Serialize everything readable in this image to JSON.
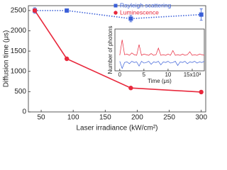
{
  "chart_data": [
    {
      "type": "line",
      "x_label": "Laser irradiance  (kW/cm²)",
      "y_label": "Diffusion time (μs)",
      "x": [
        40,
        90,
        190,
        300
      ],
      "series": [
        {
          "name": "Rayleigh scattering",
          "color": "#3a5fd8",
          "marker": "square",
          "dash": "dotted",
          "values": [
            2500,
            2500,
            2300,
            2400
          ],
          "errors": [
            70,
            0,
            80,
            140
          ]
        },
        {
          "name": "Luminescence",
          "color": "#e8283c",
          "marker": "circle",
          "dash": "solid",
          "values": [
            2500,
            1310,
            590,
            490
          ]
        }
      ],
      "xlim": [
        30,
        307
      ],
      "ylim": [
        0,
        2620
      ],
      "xticks": [
        50,
        100,
        150,
        200,
        250,
        300
      ],
      "yticks": [
        0,
        500,
        1000,
        1500,
        2000,
        2500
      ],
      "legend": "top-right"
    },
    {
      "type": "line",
      "x_label": "Time (μs)",
      "y_label": "Number of photons",
      "x": [
        0,
        0.5,
        1,
        1.5,
        2,
        2.5,
        3,
        3.5,
        4,
        4.5,
        5,
        5.5,
        6,
        6.5,
        7,
        7.5,
        8,
        8.5,
        9,
        9.5,
        10,
        10.5,
        11,
        11.5,
        12,
        12.5,
        13,
        13.5,
        14,
        14.5,
        15,
        15.5,
        16,
        16.5,
        17,
        17.5
      ],
      "series": [
        {
          "name": "Luminescence",
          "color": "#e8283c",
          "values": [
            0.3,
            1.6,
            0.35,
            0.4,
            0.3,
            0.5,
            0.35,
            0.3,
            1.2,
            0.3,
            0.4,
            0.35,
            0.3,
            0.45,
            0.3,
            0.35,
            0.9,
            0.3,
            0.35,
            0.3,
            0.4,
            0.3,
            0.7,
            0.3,
            0.35,
            0.3,
            0.4,
            0.3,
            0.35,
            0.6,
            0.3,
            0.35,
            0.3,
            0.4,
            0.35,
            0.3
          ]
        },
        {
          "name": "Rayleigh scattering",
          "color": "#3a5fd8",
          "values": [
            -0.2,
            -0.8,
            -0.3,
            -0.25,
            -0.4,
            -0.2,
            -0.3,
            -0.25,
            -0.6,
            -0.2,
            -0.35,
            -0.3,
            -0.2,
            -0.45,
            -0.25,
            -0.3,
            -0.2,
            -0.5,
            -0.25,
            -0.3,
            -0.2,
            -0.35,
            -0.3,
            -0.2,
            -0.55,
            -0.25,
            -0.3,
            -0.2,
            -0.4,
            -0.25,
            -0.3,
            -0.2,
            -0.35,
            -0.25,
            -0.3,
            -0.2
          ]
        }
      ],
      "xlim": [
        -1,
        17.5
      ],
      "ylim": [
        -1,
        2.5
      ],
      "xticks": [
        0,
        5,
        10,
        {
          "value": 15,
          "label": "15x10³"
        }
      ]
    }
  ]
}
